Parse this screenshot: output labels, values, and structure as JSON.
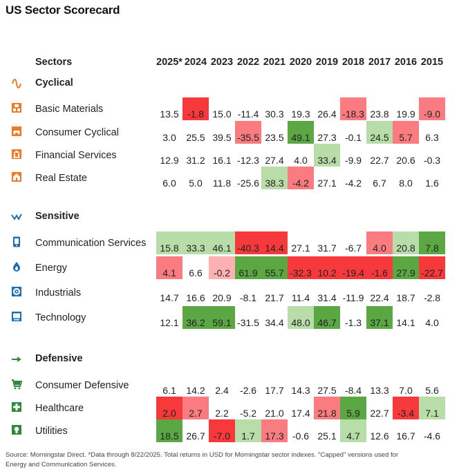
{
  "title": "US Sector Scorecard",
  "header": {
    "sectors_label": "Sectors",
    "years": [
      "2025*",
      "2024",
      "2023",
      "2022",
      "2021",
      "2020",
      "2019",
      "2018",
      "2017",
      "2016",
      "2015"
    ]
  },
  "colors": {
    "dark_red": "#f8393c",
    "mid_red": "#fb7c80",
    "light_red": "#fdb1b3",
    "dark_green": "#5aa744",
    "mid_green": "#8dc77c",
    "light_green": "#b9dda8",
    "icon_orange": "#f07b25",
    "icon_blue": "#1a6fb5",
    "icon_green": "#2d8a3a"
  },
  "groups": [
    {
      "name": "Cyclical",
      "icon": "cyclical-wave-icon",
      "rows": [
        {
          "name": "Basic Materials",
          "icon": "basic-materials-icon",
          "values": [
            "13.5",
            "-1.8",
            "15.0",
            "-11.4",
            "30.3",
            "19.3",
            "26.4",
            "-18.3",
            "23.8",
            "19.9",
            "-9.0"
          ],
          "shades": [
            "",
            "R2",
            "",
            "",
            "",
            "",
            "",
            "R1",
            "",
            "",
            "R1"
          ]
        },
        {
          "name": "Consumer Cyclical",
          "icon": "consumer-cyclical-icon",
          "values": [
            "3.0",
            "25.5",
            "39.5",
            "-35.5",
            "23.5",
            "49.1",
            "27.3",
            "-0.1",
            "24.5",
            "5.7",
            "6.3"
          ],
          "shades": [
            "",
            "",
            "",
            "R1",
            "",
            "G3",
            "",
            "",
            "G1",
            "R1",
            ""
          ]
        },
        {
          "name": "Financial Services",
          "icon": "financial-services-icon",
          "values": [
            "12.9",
            "31.2",
            "16.1",
            "-12.3",
            "27.4",
            "4.0",
            "33.4",
            "-9.9",
            "22.7",
            "20.6",
            "-0.3"
          ],
          "shades": [
            "",
            "",
            "",
            "",
            "",
            "",
            "G1",
            "",
            "",
            "",
            ""
          ]
        },
        {
          "name": "Real Estate",
          "icon": "real-estate-icon",
          "values": [
            "6.0",
            "5.0",
            "11.8",
            "-25.6",
            "38.3",
            "-4.2",
            "27.1",
            "-4.2",
            "6.7",
            "8.0",
            "1.6"
          ],
          "shades": [
            "",
            "",
            "",
            "",
            "G1",
            "R1",
            "",
            "",
            "",
            "",
            ""
          ]
        }
      ]
    },
    {
      "name": "Sensitive",
      "icon": "sensitive-zigzag-icon",
      "rows": [
        {
          "name": "Communication Services",
          "icon": "communication-services-icon",
          "values": [
            "15.8",
            "33.3",
            "46.1",
            "-40.3",
            "14.4",
            "27.1",
            "31.7",
            "-6.7",
            "4.0",
            "20.8",
            "7.8"
          ],
          "shades": [
            "G1",
            "G1",
            "G1",
            "R2",
            "R2",
            "",
            "",
            "",
            "R1",
            "G1",
            "G3"
          ]
        },
        {
          "name": "Energy",
          "icon": "energy-icon",
          "values": [
            "4.1",
            "6.6",
            "-0.2",
            "61.9",
            "55.7",
            "-32.3",
            "10.2",
            "-19.4",
            "-1.6",
            "27.9",
            "-22.7"
          ],
          "shades": [
            "R1",
            "",
            "R0",
            "G3",
            "G3",
            "R2",
            "R2",
            "R2",
            "R2",
            "G3",
            "R2"
          ]
        },
        {
          "name": "Industrials",
          "icon": "industrials-icon",
          "values": [
            "14.7",
            "16.6",
            "20.9",
            "-8.1",
            "21.7",
            "11.4",
            "31.4",
            "-11.9",
            "22.4",
            "18.7",
            "-2.8"
          ],
          "shades": [
            "",
            "",
            "",
            "",
            "",
            "",
            "",
            "",
            "",
            "",
            ""
          ]
        },
        {
          "name": "Technology",
          "icon": "technology-icon",
          "values": [
            "12.1",
            "36.2",
            "59.1",
            "-31.5",
            "34.4",
            "48.0",
            "46.7",
            "-1.3",
            "37.1",
            "14.1",
            "4.0"
          ],
          "shades": [
            "",
            "G3",
            "G3",
            "",
            "",
            "G1",
            "G3",
            "",
            "G3",
            "",
            ""
          ]
        }
      ]
    },
    {
      "name": "Defensive",
      "icon": "defensive-arrow-icon",
      "rows": [
        {
          "name": "Consumer Defensive",
          "icon": "consumer-defensive-icon",
          "values": [
            "6.1",
            "14.2",
            "2.4",
            "-2.6",
            "17.7",
            "14.3",
            "27.5",
            "-8.4",
            "13.3",
            "7.0",
            "5.6"
          ],
          "shades": [
            "",
            "",
            "",
            "",
            "",
            "",
            "",
            "",
            "",
            "",
            ""
          ]
        },
        {
          "name": "Healthcare",
          "icon": "healthcare-icon",
          "values": [
            "2.0",
            "2.7",
            "2.2",
            "-5.2",
            "21.0",
            "17.4",
            "21.8",
            "5.9",
            "22.7",
            "-3.4",
            "7.1"
          ],
          "shades": [
            "R2",
            "R1",
            "",
            "",
            "",
            "",
            "R1",
            "G3",
            "",
            "R2",
            "G1"
          ]
        },
        {
          "name": "Utilities",
          "icon": "utilities-icon",
          "values": [
            "18.5",
            "26.7",
            "-7.0",
            "1.7",
            "17.3",
            "-0.6",
            "25.1",
            "4.7",
            "12.6",
            "16.7",
            "-4.6"
          ],
          "shades": [
            "G3",
            "",
            "R2",
            "G1",
            "R1",
            "",
            "",
            "G1",
            "",
            "",
            ""
          ]
        }
      ]
    }
  ],
  "chart_data": {
    "type": "table",
    "title": "US Sector Scorecard",
    "columns": [
      "2025*",
      "2024",
      "2023",
      "2022",
      "2021",
      "2020",
      "2019",
      "2018",
      "2017",
      "2016",
      "2015"
    ],
    "units": "Total return (%)",
    "rows": [
      {
        "sector": "Basic Materials",
        "group": "Cyclical",
        "values": [
          13.5,
          -1.8,
          15.0,
          -11.4,
          30.3,
          19.3,
          26.4,
          -18.3,
          23.8,
          19.9,
          -9.0
        ]
      },
      {
        "sector": "Consumer Cyclical",
        "group": "Cyclical",
        "values": [
          3.0,
          25.5,
          39.5,
          -35.5,
          23.5,
          49.1,
          27.3,
          -0.1,
          24.5,
          5.7,
          6.3
        ]
      },
      {
        "sector": "Financial Services",
        "group": "Cyclical",
        "values": [
          12.9,
          31.2,
          16.1,
          -12.3,
          27.4,
          4.0,
          33.4,
          -9.9,
          22.7,
          20.6,
          -0.3
        ]
      },
      {
        "sector": "Real Estate",
        "group": "Cyclical",
        "values": [
          6.0,
          5.0,
          11.8,
          -25.6,
          38.3,
          -4.2,
          27.1,
          -4.2,
          6.7,
          8.0,
          1.6
        ]
      },
      {
        "sector": "Communication Services",
        "group": "Sensitive",
        "values": [
          15.8,
          33.3,
          46.1,
          -40.3,
          14.4,
          27.1,
          31.7,
          -6.7,
          4.0,
          20.8,
          7.8
        ]
      },
      {
        "sector": "Energy",
        "group": "Sensitive",
        "values": [
          4.1,
          6.6,
          -0.2,
          61.9,
          55.7,
          -32.3,
          10.2,
          -19.4,
          -1.6,
          27.9,
          -22.7
        ]
      },
      {
        "sector": "Industrials",
        "group": "Sensitive",
        "values": [
          14.7,
          16.6,
          20.9,
          -8.1,
          21.7,
          11.4,
          31.4,
          -11.9,
          22.4,
          18.7,
          -2.8
        ]
      },
      {
        "sector": "Technology",
        "group": "Sensitive",
        "values": [
          12.1,
          36.2,
          59.1,
          -31.5,
          34.4,
          48.0,
          46.7,
          -1.3,
          37.1,
          14.1,
          4.0
        ]
      },
      {
        "sector": "Consumer Defensive",
        "group": "Defensive",
        "values": [
          6.1,
          14.2,
          2.4,
          -2.6,
          17.7,
          14.3,
          27.5,
          -8.4,
          13.3,
          7.0,
          5.6
        ]
      },
      {
        "sector": "Healthcare",
        "group": "Defensive",
        "values": [
          2.0,
          2.7,
          2.2,
          -5.2,
          21.0,
          17.4,
          21.8,
          5.9,
          22.7,
          -3.4,
          7.1
        ]
      },
      {
        "sector": "Utilities",
        "group": "Defensive",
        "values": [
          18.5,
          26.7,
          -7.0,
          1.7,
          17.3,
          -0.6,
          25.1,
          4.7,
          12.6,
          16.7,
          -4.6
        ]
      }
    ]
  },
  "footer": "Source: Morningstar Direct. *Data through 8/22/2025. Total returns in USD for Morningstar sector indexes. \"Capped\" versions used for Energy and Communication Services."
}
